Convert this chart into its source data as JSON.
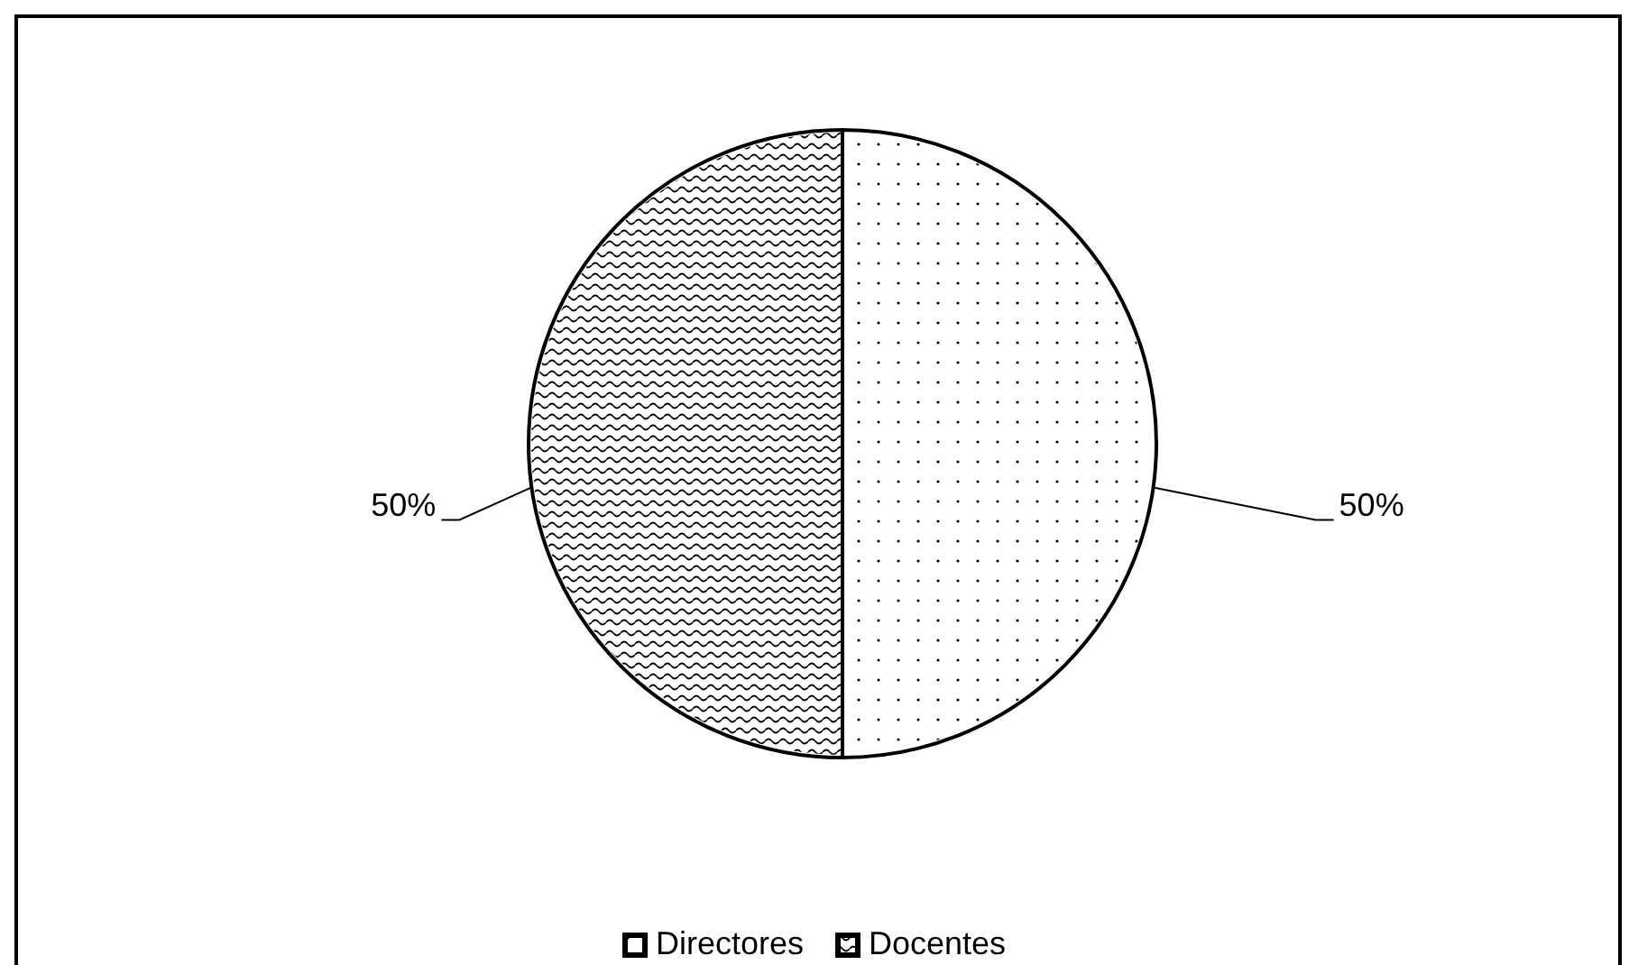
{
  "chart_data": {
    "type": "pie",
    "categories": [
      "Directores",
      "Docentes"
    ],
    "values": [
      50,
      50
    ],
    "colors": [
      "#ffffff",
      "#ffffff"
    ],
    "value_labels": [
      "50%",
      "50%"
    ],
    "legend": "bottom"
  }
}
